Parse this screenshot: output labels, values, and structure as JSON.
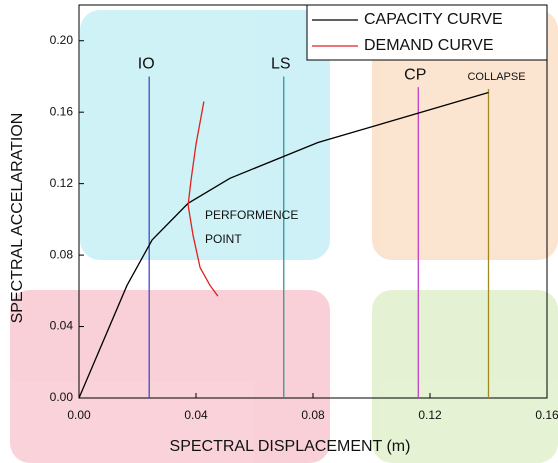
{
  "chart_data": {
    "type": "line",
    "x_label": "SPECTRAL DISPLACEMENT (m)",
    "y_label": "SPECTRAL ACCELARATION",
    "xlim": [
      0,
      0.16
    ],
    "ylim": [
      0,
      0.22
    ],
    "xticks": [
      {
        "value": 0,
        "label": "0.00"
      },
      {
        "value": 0.04,
        "label": "0.04"
      },
      {
        "value": 0.08,
        "label": "0.08"
      },
      {
        "value": 0.12,
        "label": "0.12"
      },
      {
        "value": 0.16,
        "label": "0.16"
      }
    ],
    "yticks": [
      {
        "value": 0,
        "label": "0.00"
      },
      {
        "value": 0.04,
        "label": "0.04"
      },
      {
        "value": 0.08,
        "label": "0.08"
      },
      {
        "value": 0.12,
        "label": "0.12"
      },
      {
        "value": 0.16,
        "label": "0.16"
      },
      {
        "value": 0.2,
        "label": "0.20"
      }
    ],
    "legend_position": "upper right",
    "series": [
      {
        "name": "CAPACITY CURVE",
        "color": "#000000",
        "x": [
          0,
          0.0164,
          0.025,
          0.0373,
          0.0516,
          0.0817,
          0.14
        ],
        "values": [
          0,
          0.063,
          0.0885,
          0.109,
          0.123,
          0.143,
          0.171
        ]
      },
      {
        "name": "DEMAND CURVE",
        "color": "#e02020",
        "x": [
          0.0427,
          0.04,
          0.0383,
          0.0373,
          0.039,
          0.0414,
          0.0448,
          0.0475
        ],
        "values": [
          0.166,
          0.142,
          0.122,
          0.108,
          0.091,
          0.073,
          0.063,
          0.057
        ]
      }
    ],
    "markers": [
      {
        "label": "IO",
        "x": 0.024,
        "top": 0.18,
        "color": "#4848c8"
      },
      {
        "label": "LS",
        "x": 0.07,
        "top": 0.18,
        "color": "#2a9a9a"
      },
      {
        "label": "CP",
        "x": 0.116,
        "top": 0.174,
        "color": "#c040c8"
      },
      {
        "label": "COLLAPSE",
        "x": 0.14,
        "top": 0.173,
        "color": "#a08a20"
      }
    ],
    "annotation": [
      "PERFORMENCE",
      "POINT"
    ]
  }
}
